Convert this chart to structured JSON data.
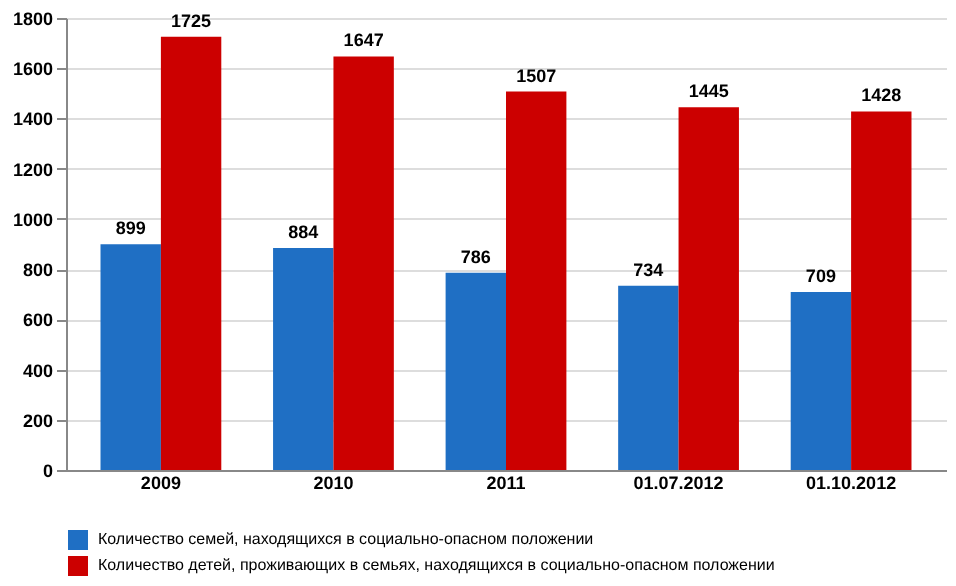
{
  "chart_data": {
    "type": "bar",
    "categories": [
      "2009",
      "2010",
      "2011",
      "01.07.2012",
      "01.10.2012"
    ],
    "series": [
      {
        "name": "Количество семей, находящихся в социально-опасном положении",
        "color": "#1f6fc4",
        "values": [
          899,
          884,
          786,
          734,
          709
        ]
      },
      {
        "name": "Количество детей, проживающих в семьях, находящихся в социально-опасном положении",
        "color": "#cc0000",
        "values": [
          1725,
          1647,
          1507,
          1445,
          1428
        ]
      }
    ],
    "ylim": [
      0,
      1800
    ],
    "yticks": [
      0,
      200,
      400,
      600,
      800,
      1000,
      1200,
      1400,
      1600,
      1800
    ],
    "grid": "y",
    "legend": "bottom",
    "data_labels": true
  }
}
